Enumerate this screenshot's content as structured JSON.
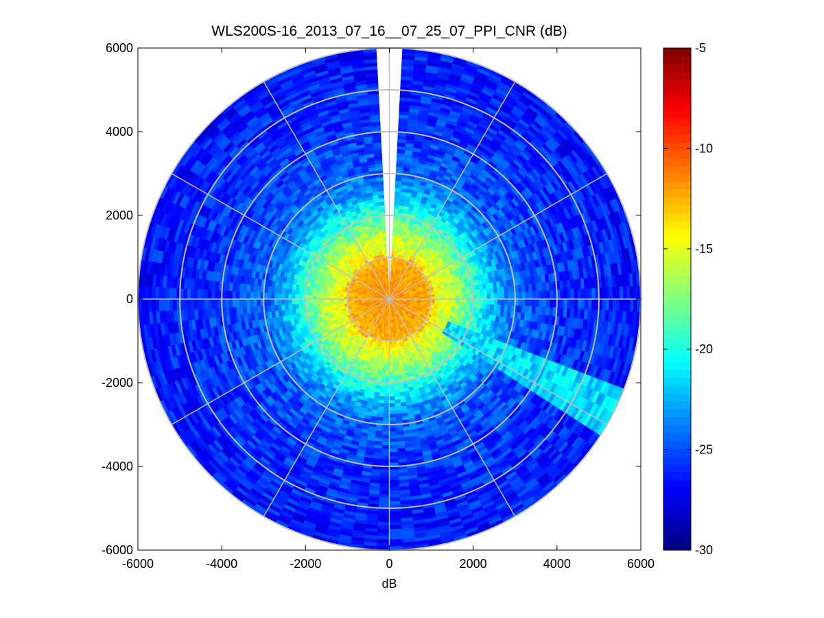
{
  "chart_data": {
    "type": "heatmap",
    "subtype": "ppi-polar-scan",
    "title": "WLS200S-16_2013_07_16__07_25_07_PPI_CNR (dB)",
    "xlabel": "dB",
    "ylabel": "",
    "xlim": [
      -6000,
      6000
    ],
    "ylim": [
      -6000,
      6000
    ],
    "x_ticks": [
      -6000,
      -4000,
      -2000,
      0,
      2000,
      4000,
      6000
    ],
    "y_ticks": [
      -6000,
      -4000,
      -2000,
      0,
      2000,
      4000,
      6000
    ],
    "x_tick_labels": [
      "-6000",
      "-4000",
      "-2000",
      "0",
      "2000",
      "4000",
      "6000"
    ],
    "y_tick_labels": [
      "-6000",
      "-4000",
      "-2000",
      "0",
      "2000",
      "4000",
      "6000"
    ],
    "max_range": 6000,
    "polar_grid": {
      "ring_radii": [
        1000,
        2000,
        3000,
        4000,
        5000,
        6000
      ],
      "spoke_angles_deg": [
        0,
        30,
        60,
        90,
        120,
        150,
        180,
        210,
        240,
        270,
        300,
        330
      ]
    },
    "blanked_sector_deg": {
      "from_north_ccw": 4,
      "to_north_cw": 4
    },
    "cnr_profile": [
      {
        "range": 0,
        "value_db": -11.5
      },
      {
        "range": 1000,
        "value_db": -12.5
      },
      {
        "range": 1100,
        "value_db": -14.5
      },
      {
        "range": 1500,
        "value_db": -16
      },
      {
        "range": 2000,
        "value_db": -19
      },
      {
        "range": 2500,
        "value_db": -22.5
      },
      {
        "range": 3000,
        "value_db": -24.5
      },
      {
        "range": 4000,
        "value_db": -25.5
      },
      {
        "range": 6000,
        "value_db": -26.5
      }
    ],
    "plume_sector": {
      "from_bearing_deg": 112,
      "to_bearing_deg": 123,
      "value_db": -21.5,
      "from_range": 1500,
      "to_range": 6000
    },
    "colorbar": {
      "lim": [
        -30,
        -5
      ],
      "ticks": [
        -30,
        -25,
        -20,
        -15,
        -10,
        -5
      ],
      "tick_labels": [
        "-30",
        "-25",
        "-20",
        "-15",
        "-10",
        "-5"
      ],
      "colormap": "jet"
    }
  },
  "colors": {
    "grid": "#c0c0c0",
    "axis": "#000000",
    "background": "#ffffff"
  }
}
